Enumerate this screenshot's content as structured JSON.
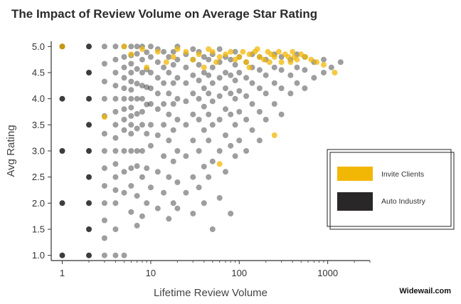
{
  "chart_data": {
    "type": "scatter",
    "title": "The Impact of Review Volume on Average Star Rating",
    "xlabel": "Lifetime Review Volume",
    "ylabel": "Avg Rating",
    "x_scale": "log",
    "xlim": [
      0.75,
      3000
    ],
    "ylim": [
      0.9,
      5.1
    ],
    "x_ticks": [
      "1",
      "10",
      "100",
      "1000"
    ],
    "y_ticks": [
      "1.0",
      "1.5",
      "2.0",
      "2.5",
      "3.0",
      "3.5",
      "4.0",
      "4.5",
      "5.0"
    ],
    "legend_position": "right",
    "series": [
      {
        "name": "Invite Clients",
        "color": "#F2B705",
        "points": [
          [
            1,
            5.0
          ],
          [
            3,
            3.65
          ],
          [
            5,
            5.0
          ],
          [
            6,
            4.85
          ],
          [
            8,
            4.95
          ],
          [
            9,
            4.6
          ],
          [
            12,
            4.9
          ],
          [
            15,
            4.7
          ],
          [
            18,
            4.8
          ],
          [
            20,
            4.95
          ],
          [
            25,
            4.9
          ],
          [
            30,
            4.75
          ],
          [
            35,
            4.85
          ],
          [
            40,
            4.6
          ],
          [
            45,
            4.95
          ],
          [
            50,
            4.9
          ],
          [
            55,
            4.7
          ],
          [
            60,
            4.8
          ],
          [
            70,
            4.85
          ],
          [
            80,
            4.9
          ],
          [
            90,
            4.75
          ],
          [
            100,
            4.8
          ],
          [
            110,
            4.9
          ],
          [
            120,
            4.7
          ],
          [
            130,
            4.85
          ],
          [
            150,
            4.9
          ],
          [
            170,
            4.8
          ],
          [
            190,
            4.75
          ],
          [
            210,
            4.9
          ],
          [
            230,
            4.85
          ],
          [
            250,
            4.8
          ],
          [
            280,
            4.9
          ],
          [
            300,
            4.7
          ],
          [
            330,
            4.85
          ],
          [
            360,
            4.8
          ],
          [
            400,
            4.9
          ],
          [
            450,
            4.75
          ],
          [
            500,
            4.85
          ],
          [
            560,
            4.8
          ],
          [
            650,
            4.75
          ],
          [
            750,
            4.7
          ],
          [
            900,
            4.65
          ],
          [
            1200,
            4.5
          ],
          [
            250,
            3.3
          ],
          [
            60,
            2.75
          ],
          [
            130,
            4.6
          ],
          [
            160,
            4.95
          ],
          [
            220,
            4.7
          ],
          [
            380,
            4.7
          ],
          [
            420,
            4.8
          ]
        ]
      },
      {
        "name": "Auto Industry",
        "color": "#2A2728",
        "points": [
          [
            1,
            1.0
          ],
          [
            1,
            2.0
          ],
          [
            1,
            3.0
          ],
          [
            1,
            4.0
          ],
          [
            1,
            5.0
          ],
          [
            2,
            1.0
          ],
          [
            2,
            1.5
          ],
          [
            2,
            2.0
          ],
          [
            2,
            2.5
          ],
          [
            2,
            3.0
          ],
          [
            2,
            3.5
          ],
          [
            2,
            4.0
          ],
          [
            2,
            4.5
          ],
          [
            2,
            5.0
          ],
          [
            3,
            1.0
          ],
          [
            3,
            1.33
          ],
          [
            3,
            1.67
          ],
          [
            3,
            2.0
          ],
          [
            3,
            2.33
          ],
          [
            3,
            2.67
          ],
          [
            3,
            3.0
          ],
          [
            3,
            3.33
          ],
          [
            3,
            3.67
          ],
          [
            3,
            4.0
          ],
          [
            3,
            4.33
          ],
          [
            3,
            4.67
          ],
          [
            3,
            5.0
          ],
          [
            4,
            1.0
          ],
          [
            4,
            1.5
          ],
          [
            4,
            2.0
          ],
          [
            4,
            2.25
          ],
          [
            4,
            2.5
          ],
          [
            4,
            2.75
          ],
          [
            4,
            3.0
          ],
          [
            4,
            3.25
          ],
          [
            4,
            3.5
          ],
          [
            4,
            3.75
          ],
          [
            4,
            4.0
          ],
          [
            4,
            4.25
          ],
          [
            4,
            4.5
          ],
          [
            4,
            4.75
          ],
          [
            4,
            5.0
          ],
          [
            5,
            1.0
          ],
          [
            5,
            2.2
          ],
          [
            5,
            2.6
          ],
          [
            5,
            3.0
          ],
          [
            5,
            3.4
          ],
          [
            5,
            3.6
          ],
          [
            5,
            3.8
          ],
          [
            5,
            4.0
          ],
          [
            5,
            4.2
          ],
          [
            5,
            4.4
          ],
          [
            5,
            4.6
          ],
          [
            5,
            4.8
          ],
          [
            5,
            5.0
          ],
          [
            6,
            1.83
          ],
          [
            6,
            2.33
          ],
          [
            6,
            2.67
          ],
          [
            6,
            3.0
          ],
          [
            6,
            3.33
          ],
          [
            6,
            3.5
          ],
          [
            6,
            3.67
          ],
          [
            6,
            3.83
          ],
          [
            6,
            4.0
          ],
          [
            6,
            4.17
          ],
          [
            6,
            4.33
          ],
          [
            6,
            4.5
          ],
          [
            6,
            4.67
          ],
          [
            6,
            4.83
          ],
          [
            6,
            5.0
          ],
          [
            7,
            1.57
          ],
          [
            7,
            2.14
          ],
          [
            7,
            2.71
          ],
          [
            7,
            3.0
          ],
          [
            7,
            3.43
          ],
          [
            7,
            3.71
          ],
          [
            7,
            4.0
          ],
          [
            7,
            4.29
          ],
          [
            7,
            4.57
          ],
          [
            7,
            4.86
          ],
          [
            7,
            5.0
          ],
          [
            8,
            1.75
          ],
          [
            8,
            2.5
          ],
          [
            8,
            3.0
          ],
          [
            8,
            3.5
          ],
          [
            8,
            3.75
          ],
          [
            8,
            4.0
          ],
          [
            8,
            4.25
          ],
          [
            8,
            4.5
          ],
          [
            8,
            4.75
          ],
          [
            8,
            5.0
          ],
          [
            9,
            2.0
          ],
          [
            9,
            2.67
          ],
          [
            9,
            3.33
          ],
          [
            9,
            3.89
          ],
          [
            9,
            4.22
          ],
          [
            9,
            4.56
          ],
          [
            9,
            4.89
          ],
          [
            10,
            2.3
          ],
          [
            10,
            3.1
          ],
          [
            10,
            3.5
          ],
          [
            10,
            3.9
          ],
          [
            10,
            4.2
          ],
          [
            10,
            4.5
          ],
          [
            10,
            4.8
          ],
          [
            10,
            5.0
          ],
          [
            12,
            1.9
          ],
          [
            12,
            2.6
          ],
          [
            12,
            3.3
          ],
          [
            12,
            3.8
          ],
          [
            12,
            4.1
          ],
          [
            12,
            4.4
          ],
          [
            12,
            4.7
          ],
          [
            12,
            4.95
          ],
          [
            14,
            2.2
          ],
          [
            14,
            2.9
          ],
          [
            14,
            3.5
          ],
          [
            14,
            3.9
          ],
          [
            14,
            4.3
          ],
          [
            14,
            4.6
          ],
          [
            14,
            4.9
          ],
          [
            16,
            1.7
          ],
          [
            16,
            2.5
          ],
          [
            16,
            3.2
          ],
          [
            16,
            3.7
          ],
          [
            16,
            4.1
          ],
          [
            16,
            4.5
          ],
          [
            16,
            4.8
          ],
          [
            18,
            2.0
          ],
          [
            18,
            2.8
          ],
          [
            18,
            3.4
          ],
          [
            18,
            3.9
          ],
          [
            18,
            4.3
          ],
          [
            18,
            4.65
          ],
          [
            18,
            4.9
          ],
          [
            20,
            1.9
          ],
          [
            20,
            2.4
          ],
          [
            20,
            3.0
          ],
          [
            20,
            3.6
          ],
          [
            20,
            4.0
          ],
          [
            20,
            4.4
          ],
          [
            20,
            4.75
          ],
          [
            20,
            5.0
          ],
          [
            25,
            2.2
          ],
          [
            25,
            2.9
          ],
          [
            25,
            3.5
          ],
          [
            25,
            3.95
          ],
          [
            25,
            4.3
          ],
          [
            25,
            4.6
          ],
          [
            25,
            4.85
          ],
          [
            30,
            1.8
          ],
          [
            30,
            2.5
          ],
          [
            30,
            3.2
          ],
          [
            30,
            3.7
          ],
          [
            30,
            4.1
          ],
          [
            30,
            4.45
          ],
          [
            30,
            4.75
          ],
          [
            30,
            4.95
          ],
          [
            35,
            2.3
          ],
          [
            35,
            3.0
          ],
          [
            35,
            3.6
          ],
          [
            35,
            4.0
          ],
          [
            35,
            4.35
          ],
          [
            35,
            4.65
          ],
          [
            35,
            4.9
          ],
          [
            40,
            2.0
          ],
          [
            40,
            2.7
          ],
          [
            40,
            3.4
          ],
          [
            40,
            3.85
          ],
          [
            40,
            4.2
          ],
          [
            40,
            4.5
          ],
          [
            40,
            4.8
          ],
          [
            45,
            2.5
          ],
          [
            45,
            3.2
          ],
          [
            45,
            3.7
          ],
          [
            45,
            4.1
          ],
          [
            45,
            4.45
          ],
          [
            45,
            4.75
          ],
          [
            50,
            1.5
          ],
          [
            50,
            2.8
          ],
          [
            50,
            3.5
          ],
          [
            50,
            3.95
          ],
          [
            50,
            4.3
          ],
          [
            50,
            4.6
          ],
          [
            50,
            4.85
          ],
          [
            60,
            2.1
          ],
          [
            60,
            3.0
          ],
          [
            60,
            3.6
          ],
          [
            60,
            4.05
          ],
          [
            60,
            4.4
          ],
          [
            60,
            4.7
          ],
          [
            60,
            4.95
          ],
          [
            70,
            2.6
          ],
          [
            70,
            3.3
          ],
          [
            70,
            3.8
          ],
          [
            70,
            4.2
          ],
          [
            70,
            4.5
          ],
          [
            70,
            4.8
          ],
          [
            80,
            1.8
          ],
          [
            80,
            3.1
          ],
          [
            80,
            3.7
          ],
          [
            80,
            4.1
          ],
          [
            80,
            4.45
          ],
          [
            80,
            4.75
          ],
          [
            90,
            2.9
          ],
          [
            90,
            3.5
          ],
          [
            90,
            4.0
          ],
          [
            90,
            4.35
          ],
          [
            90,
            4.65
          ],
          [
            90,
            4.9
          ],
          [
            100,
            3.2
          ],
          [
            100,
            3.75
          ],
          [
            100,
            4.15
          ],
          [
            100,
            4.5
          ],
          [
            100,
            4.8
          ],
          [
            120,
            3.0
          ],
          [
            120,
            3.6
          ],
          [
            120,
            4.05
          ],
          [
            120,
            4.4
          ],
          [
            120,
            4.7
          ],
          [
            140,
            3.4
          ],
          [
            140,
            3.9
          ],
          [
            140,
            4.3
          ],
          [
            140,
            4.6
          ],
          [
            140,
            4.85
          ],
          [
            170,
            3.2
          ],
          [
            170,
            3.75
          ],
          [
            170,
            4.2
          ],
          [
            170,
            4.55
          ],
          [
            170,
            4.8
          ],
          [
            200,
            3.6
          ],
          [
            200,
            4.1
          ],
          [
            200,
            4.45
          ],
          [
            200,
            4.75
          ],
          [
            250,
            3.9
          ],
          [
            250,
            4.3
          ],
          [
            250,
            4.6
          ],
          [
            250,
            4.85
          ],
          [
            300,
            3.7
          ],
          [
            300,
            4.2
          ],
          [
            300,
            4.55
          ],
          [
            300,
            4.8
          ],
          [
            380,
            4.1
          ],
          [
            380,
            4.45
          ],
          [
            380,
            4.75
          ],
          [
            450,
            4.3
          ],
          [
            450,
            4.6
          ],
          [
            450,
            4.85
          ],
          [
            550,
            4.2
          ],
          [
            550,
            4.55
          ],
          [
            550,
            4.8
          ],
          [
            700,
            4.4
          ],
          [
            700,
            4.7
          ],
          [
            900,
            4.5
          ],
          [
            900,
            4.75
          ],
          [
            1100,
            4.6
          ],
          [
            1400,
            4.7
          ]
        ]
      }
    ]
  },
  "legend": {
    "items": [
      {
        "label": "Invite Clients",
        "color": "#F2B705"
      },
      {
        "label": "Auto Industry",
        "color": "#2A2728"
      }
    ]
  },
  "credit": "Widewail.com"
}
